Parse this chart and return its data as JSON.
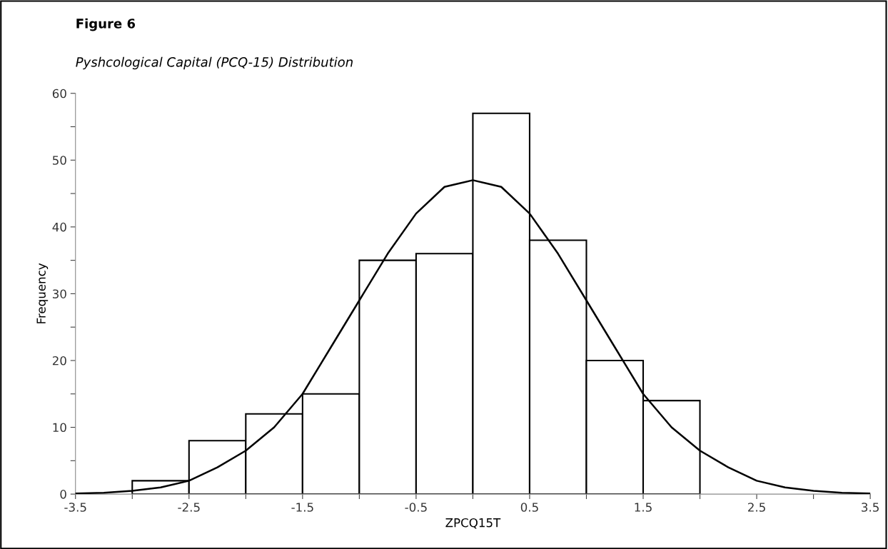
{
  "chart_data": {
    "type": "histogram",
    "title": "Figure 6",
    "subtitle": "Pyshcological Capital (PCQ-15) Distribution",
    "xlabel": "ZPCQ15T",
    "ylabel": "Frequency",
    "series": [
      {
        "color": "#ffffff",
        "bins": [
          -3,
          -2.5,
          -2,
          -1.5,
          -1,
          -0.5,
          0,
          0.5,
          1,
          1.5,
          2
        ],
        "values": [
          2,
          8,
          12,
          15,
          35,
          36,
          57,
          38,
          20,
          14
        ]
      },
      {
        "type": "line",
        "color": "#000000",
        "x": [
          -3.5,
          -3.25,
          -3,
          -2.75,
          -2.5,
          -2.25,
          -2,
          -1.75,
          -1.5,
          -1.25,
          -1,
          -0.75,
          -0.5,
          -0.25,
          0,
          0.25,
          0.5,
          0.75,
          1,
          1.25,
          1.5,
          1.75,
          2,
          2.25,
          2.5,
          2.75,
          3,
          3.25,
          3.5
        ],
        "values": [
          0.1,
          0.2,
          0.5,
          1,
          2,
          4,
          6.5,
          10,
          15,
          22,
          29,
          36,
          42,
          46,
          47,
          46,
          42,
          36,
          29,
          22,
          15,
          10,
          6.5,
          4,
          2,
          1,
          0.5,
          0.2,
          0.1
        ]
      }
    ],
    "xlim": [
      -3.5,
      3.5
    ],
    "xticks": [
      -3.5,
      {
        "value": -3,
        "label": null
      },
      -2.5,
      {
        "value": -2,
        "label": null
      },
      -1.5,
      {
        "value": -1,
        "label": null
      },
      -0.5,
      {
        "value": 0,
        "label": null
      },
      0.5,
      {
        "value": 1,
        "label": null
      },
      1.5,
      {
        "value": 2,
        "label": null
      },
      2.5,
      {
        "value": 3,
        "label": null
      },
      3.5
    ],
    "ylim": [
      0,
      60
    ],
    "yticks": [
      0,
      {
        "value": 5,
        "label": null
      },
      10,
      {
        "value": 15,
        "label": null
      },
      20,
      {
        "value": 25,
        "label": null
      },
      30,
      {
        "value": 35,
        "label": null
      },
      40,
      {
        "value": 45,
        "label": null
      },
      50,
      {
        "value": 55,
        "label": null
      },
      60
    ],
    "grid": false,
    "legend": false,
    "marker": "none",
    "line_style": "solid"
  }
}
